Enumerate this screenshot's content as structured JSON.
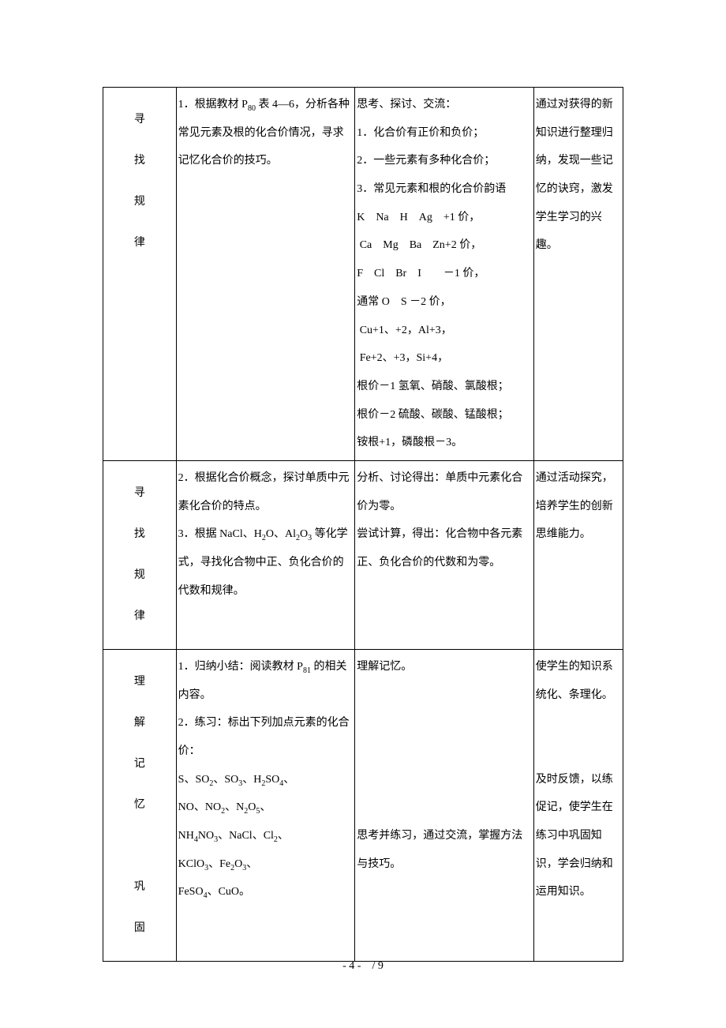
{
  "rows": [
    {
      "label_chars": [
        "寻",
        "找",
        "规",
        "律"
      ],
      "col2": "1．根据教材 P<sub>80</sub> 表 4—6，分析各种常见元素及根的化合价情况，寻求记忆化合价的技巧。",
      "col3": "思考、探讨、交流：<br>1．化合价有正价和负价；<br>2．一些元素有多种化合价；<br>3．常见元素和根的化合价韵语<br>K　Na　H　Ag　+1 价，<br>&nbsp;Ca　Mg　Ba　Zn+2 价，<br>F　Cl　Br　I　　－1 价，<br>通常 O　S －2 价，<br>&nbsp;Cu+1、+2，Al+3，<br>&nbsp;Fe+2、+3，Si+4，<br>根价－1 氢氧、硝酸、氯酸根；<br>根价－2 硫酸、碳酸、锰酸根；<br>铵根+1，磷酸根－3。",
      "col4": "通过对获得的新知识进行整理归纳，发现一些记忆的诀窍，激发学生学习的兴趣。"
    },
    {
      "label_chars": [
        "寻",
        "找",
        "规",
        "律"
      ],
      "col2": "2．根据化合价概念，探讨单质中元素化合价的特点。<br>3．根据 NaCl、H<sub>2</sub>O、Al<sub>2</sub>O<sub>3</sub> 等化学式，寻找化合物中正、负化合价的代数和规律。",
      "col3": "分析、讨论得出：单质中元素化合价为零。<br>尝试计算，得出：化合物中各元素正、负化合价的代数和为零。",
      "col4": "通过活动探究，培养学生的创新<br>思维能力。"
    },
    {
      "label_chars": [
        "理",
        "解",
        "记",
        "忆",
        "",
        "巩",
        "固"
      ],
      "col2": "1．归纳小结：阅读教材 P<sub>81</sub> 的相关内容。<br>2．练习：标出下列加点元素的化合价：<br>S、SO<sub>2</sub>、SO<sub>3</sub>、H<sub>2</sub>SO<sub>4</sub>、<br>NO、NO<sub>2</sub>、N<sub>2</sub>O<sub>5</sub>、<br>NH<sub>4</sub>NO<sub>3</sub>、NaCl、Cl<sub>2</sub>、<br>KClO<sub>3</sub>、Fe<sub>2</sub>O<sub>3</sub>、<br>FeSO<sub>4</sub>、CuO。",
      "col3": "理解记忆。<br><br><br><br><br><br>思考并练习，通过交流，掌握方法与技巧。",
      "col4": "使学生的知识系统化、条理化。<br><br><br>及时反馈，以练促记，使学生在练习中巩固知识，学会归纳和运用知识。"
    }
  ],
  "footer": "- 4 -　/ 9"
}
